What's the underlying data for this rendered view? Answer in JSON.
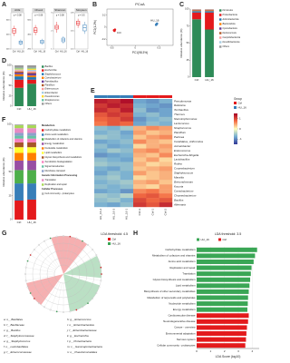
{
  "chart_data": [
    {
      "panel": "A",
      "type": "box",
      "colors": [
        "#e41a1c",
        "#377eb8"
      ],
      "subplots": [
        {
          "title": "ACE",
          "p_label": "p = 0.08",
          "categories": [
            "Ctrl",
            "HU_16"
          ],
          "ylim": [
            200,
            700
          ],
          "yticks": [
            200,
            400,
            600
          ],
          "boxes": [
            [
              380,
              420,
              450,
              480,
              520
            ],
            [
              250,
              270,
              290,
              310,
              330
            ]
          ]
        },
        {
          "title": "Chao1",
          "p_label": "p = 0.08",
          "categories": [
            "Ctrl",
            "HU_16"
          ],
          "ylim": [
            200,
            700
          ],
          "yticks": [
            200,
            400,
            600
          ],
          "boxes": [
            [
              390,
              430,
              460,
              490,
              530
            ],
            [
              260,
              280,
              300,
              320,
              340
            ]
          ]
        },
        {
          "title": "Shannon",
          "p_label": "p = 0.08",
          "categories": [
            "Ctrl",
            "HU_16"
          ],
          "ylim": [
            1,
            3
          ],
          "yticks": [
            1,
            2,
            3
          ],
          "boxes": [
            [
              1.9,
              2.1,
              2.2,
              2.3,
              2.5
            ],
            [
              1.3,
              1.4,
              1.5,
              1.6,
              1.7
            ]
          ]
        },
        {
          "title": "Simpson",
          "p_label": "p = 0.5",
          "categories": [
            "Ctrl",
            "HU_16"
          ],
          "ylim": [
            0.2,
            0.8
          ],
          "yticks": [
            0.2,
            0.5,
            0.8
          ],
          "boxes": [
            [
              0.55,
              0.6,
              0.63,
              0.66,
              0.7
            ],
            [
              0.45,
              0.5,
              0.55,
              0.6,
              0.65
            ]
          ]
        }
      ]
    },
    {
      "panel": "B",
      "type": "scatter",
      "title": "PCoA",
      "x_label": "PC1(98.3%)",
      "y_label": "PC2(1.2%)",
      "xlim": [
        -0.6,
        0.8
      ],
      "ylim": [
        -0.3,
        0.3
      ],
      "xticks": [
        -0.5,
        0,
        0.5
      ],
      "yticks": [
        -0.2,
        0,
        0.2
      ],
      "series": [
        {
          "name": "Ctrl",
          "color": "#e41a1c",
          "x": [
            -0.45,
            -0.43,
            -0.44
          ],
          "y": [
            -0.05,
            -0.04,
            -0.06
          ]
        },
        {
          "name": "HU_16",
          "color": "#377eb8",
          "x": [
            0.45,
            0.46,
            0.44
          ],
          "y": [
            0.05,
            0.06,
            0.04
          ]
        }
      ]
    },
    {
      "panel": "C",
      "type": "stacked_bar",
      "y_label": "Relative abundance (%)",
      "categories": [
        "Ctrl",
        "HU_16"
      ],
      "ylim": [
        0,
        100
      ],
      "yticks": [
        0,
        25,
        50,
        75,
        100
      ],
      "series": [
        {
          "name": "Firmicutes",
          "color": "#2e8b57",
          "values": [
            85,
            70
          ]
        },
        {
          "name": "Proteobacteria",
          "color": "#e41a1c",
          "values": [
            10,
            25
          ]
        },
        {
          "name": "Actinobacteriota",
          "color": "#1f78b4",
          "values": [
            2,
            2
          ]
        },
        {
          "name": "Bacteroidota",
          "color": "#ff7f00",
          "values": [
            1,
            1
          ]
        },
        {
          "name": "Cyanobacteria",
          "color": "#6a3d9a",
          "values": [
            0.5,
            0.5
          ]
        },
        {
          "name": "Deinococcota",
          "color": "#b15928",
          "values": [
            0.5,
            0.5
          ]
        },
        {
          "name": "Campilobacterota",
          "color": "#fb9a99",
          "values": [
            0.3,
            0.3
          ]
        },
        {
          "name": "Desulfobacterota",
          "color": "#a6cee3",
          "values": [
            0.2,
            0.2
          ]
        },
        {
          "name": "Others",
          "color": "#999999",
          "values": [
            0.5,
            0.5
          ]
        }
      ]
    },
    {
      "panel": "D",
      "type": "stacked_bar",
      "y_label": "Relative abundance (%)",
      "categories": [
        "Ctrl",
        "HU_16"
      ],
      "ylim": [
        0,
        100
      ],
      "yticks": [
        0,
        25,
        50,
        75,
        100
      ],
      "series": [
        {
          "name": "Bacillus",
          "color": "#2e8b57",
          "values": [
            45,
            55
          ]
        },
        {
          "name": "Escherichia",
          "color": "#e41a1c",
          "values": [
            20,
            10
          ]
        },
        {
          "name": "Staphylococcus",
          "color": "#1f78b4",
          "values": [
            8,
            6
          ]
        },
        {
          "name": "Carnobacterium",
          "color": "#ff7f00",
          "values": [
            5,
            4
          ]
        },
        {
          "name": "Paenibacillus",
          "color": "#6a3d9a",
          "values": [
            4,
            5
          ]
        },
        {
          "name": "Planifilum",
          "color": "#b15928",
          "values": [
            3,
            2
          ]
        },
        {
          "name": "Enterococcus",
          "color": "#fb9a99",
          "values": [
            3,
            4
          ]
        },
        {
          "name": "Enterobacter",
          "color": "#a6cee3",
          "values": [
            2,
            3
          ]
        },
        {
          "name": "Pseudomonas",
          "color": "#ffd92f",
          "values": [
            2,
            3
          ]
        },
        {
          "name": "Streptococcus",
          "color": "#66c2a5",
          "values": [
            2,
            2
          ]
        },
        {
          "name": "Others",
          "color": "#999999",
          "values": [
            6,
            6
          ]
        }
      ]
    },
    {
      "panel": "E",
      "type": "heatmap",
      "columns": [
        "HU_16-2",
        "HU_16-3",
        "HU_16-1",
        "Ctrl-3",
        "Ctrl-1",
        "Ctrl-2"
      ],
      "rows": [
        "Pseudomonas",
        "Ralstonia",
        "Terribacillus",
        "Thermus",
        "Stenotrophomonas",
        "Lactococcus",
        "Streptococcus",
        "Planifilum",
        "Pantoea",
        "Candidatus_Arthromitus",
        "Acinetobacter",
        "Enterococcus",
        "Escherichia-Shigella",
        "Lactobacillus",
        "Rothia",
        "Corynebacterium",
        "Staphylococcus",
        "Massilia",
        "Brevundimonas",
        "Kocuria",
        "Carnobacterium",
        "Chryseobacterium",
        "Bacillus",
        "Alternaria"
      ],
      "values": [
        [
          1.3,
          1.2,
          1.4,
          -0.8,
          -0.9,
          -0.7
        ],
        [
          1.1,
          1.3,
          1.2,
          -0.7,
          -0.8,
          -0.9
        ],
        [
          1.2,
          1.0,
          1.3,
          -0.6,
          -0.9,
          -0.8
        ],
        [
          0.9,
          1.1,
          1.0,
          -0.7,
          -0.6,
          -0.8
        ],
        [
          0.8,
          0.9,
          1.1,
          -0.9,
          -0.7,
          -0.6
        ],
        [
          0.7,
          0.9,
          0.8,
          -0.8,
          -0.6,
          -0.7
        ],
        [
          -0.6,
          -0.7,
          -0.5,
          0.4,
          0.6,
          0.5
        ],
        [
          -0.7,
          -0.6,
          -0.8,
          0.5,
          0.3,
          0.4
        ],
        [
          -0.5,
          -0.6,
          -0.7,
          0.3,
          0.5,
          0.6
        ],
        [
          -0.8,
          -0.7,
          -0.6,
          0.6,
          0.4,
          0.3
        ],
        [
          -0.6,
          -0.8,
          -0.7,
          0.2,
          0.4,
          0.5
        ],
        [
          -0.7,
          -0.5,
          -0.6,
          0.5,
          0.6,
          0.4
        ],
        [
          -0.9,
          -0.8,
          -0.7,
          0.4,
          0.3,
          0.6
        ],
        [
          -0.6,
          -0.7,
          -0.8,
          0.3,
          0.5,
          0.2
        ],
        [
          -0.5,
          -0.6,
          -0.6,
          0.4,
          0.2,
          0.3
        ],
        [
          -0.7,
          -0.8,
          -0.6,
          0.3,
          0.4,
          0.5
        ],
        [
          -0.8,
          -0.6,
          -0.7,
          0.5,
          0.3,
          0.4
        ],
        [
          -0.6,
          -0.5,
          -0.7,
          0.2,
          0.3,
          0.4
        ],
        [
          -0.7,
          -0.6,
          -0.5,
          0.4,
          0.5,
          0.3
        ],
        [
          -0.6,
          -0.7,
          -0.6,
          0.3,
          0.2,
          0.5
        ],
        [
          -0.8,
          -0.7,
          -0.9,
          0.6,
          0.7,
          0.5
        ],
        [
          -0.5,
          -0.6,
          -0.4,
          0.8,
          0.9,
          0.7
        ],
        [
          -0.6,
          -0.5,
          -0.7,
          1.0,
          0.8,
          0.9
        ],
        [
          -0.7,
          -0.8,
          -0.6,
          1.1,
          0.9,
          1.2
        ]
      ],
      "zlim": [
        -1.5,
        1.5
      ],
      "zticks": [
        -1,
        0,
        1
      ],
      "colormap": [
        "#313695",
        "#74add1",
        "#ffffbf",
        "#f46d43",
        "#a50026"
      ],
      "group_title": "Group",
      "groups": [
        {
          "name": "Ctrl",
          "color": "#e41a1c"
        },
        {
          "name": "HU_16",
          "color": "#377eb8"
        }
      ]
    },
    {
      "panel": "F",
      "type": "stacked_bar",
      "y_label": "Relative abundance (%)",
      "categories": [
        "Ctrl",
        "HU_16"
      ],
      "ylim": [
        0,
        100
      ],
      "yticks": [
        0,
        25,
        50,
        75,
        100
      ],
      "groups": [
        {
          "name": "Metabolism",
          "series": [
            {
              "name": "Carbohydrate metabolism",
              "color": "#e41a1c",
              "values": [
                20,
                21
              ]
            },
            {
              "name": "Amino acid metabolism",
              "color": "#377eb8",
              "values": [
                18,
                17
              ]
            },
            {
              "name": "Metabolism of cofactors and vitamins",
              "color": "#4daf4a",
              "values": [
                14,
                14
              ]
            },
            {
              "name": "Energy metabolism",
              "color": "#984ea3",
              "values": [
                10,
                10
              ]
            },
            {
              "name": "Nucleotide metabolism",
              "color": "#ff7f00",
              "values": [
                8,
                8
              ]
            },
            {
              "name": "Lipid metabolism",
              "color": "#ffff33",
              "values": [
                6,
                6
              ]
            },
            {
              "name": "Glycan biosynthesis and metabolism",
              "color": "#a65628",
              "values": [
                5,
                5
              ]
            },
            {
              "name": "Xenobiotics biodegradation",
              "color": "#f781bf",
              "values": [
                4,
                4
              ]
            },
            {
              "name": "Signal transduction",
              "color": "#66c2a5",
              "values": [
                3,
                3
              ]
            },
            {
              "name": "Membrane transport",
              "color": "#8da0cb",
              "values": [
                3,
                3
              ]
            }
          ]
        },
        {
          "name": "Genetic Information Processing",
          "series": [
            {
              "name": "Translation",
              "color": "#e78ac3",
              "values": [
                5,
                5
              ]
            },
            {
              "name": "Replication and repair",
              "color": "#a6d854",
              "values": [
                3,
                3
              ]
            }
          ]
        },
        {
          "name": "Cellular Processes",
          "series": [
            {
              "name": "Cell community - prokaryotes",
              "color": "#b3b3b3",
              "values": [
                1,
                1
              ]
            }
          ]
        }
      ]
    },
    {
      "panel": "G",
      "type": "cladogram",
      "title": "LDA threshold: 4.5",
      "series": [
        {
          "name": "Ctrl",
          "color": "#e41a1c"
        },
        {
          "name": "HU_16",
          "color": "#3aa655"
        }
      ],
      "legend": [
        "a: o__Bacillales",
        "b: f__Bacillaceae",
        "c: g__Bacillus",
        "d: f__Staphylococcaceae",
        "e: g__Staphylococcus",
        "f: o__Lactobacillales",
        "g: f__Enterococcaceae",
        "h: g__Enterococcus",
        "i: o__Enterobacterales",
        "j: f__Enterobacteriaceae",
        "k: g__Escherichia",
        "l: p__Proteobacteria",
        "m: c__Gammaproteobacteria",
        "n: o__Pseudomonadales"
      ]
    },
    {
      "panel": "H",
      "type": "hbar",
      "title": "LDA threshold: 3.5",
      "x_label": "LDA Score (log10)",
      "series": [
        {
          "name": "HU_16",
          "color": "#3aa655"
        },
        {
          "name": "Ctrl",
          "color": "#e31a1c"
        }
      ],
      "categories": [
        "Carbohydrate metabolism",
        "Metabolism of cofactors and vitamins",
        "Amino acid metabolism",
        "Replication and repair",
        "Translation",
        "Glycan biosynthesis and metabolism",
        "Lipid metabolism",
        "Biosynthesis of other secondary metabolites",
        "Metabolism of terpenoids and polyketides",
        "Nucleotide metabolism",
        "Energy metabolism",
        "Cardiovascular disease",
        "Neurodegenerative disease",
        "Cancer - overview",
        "Environmental adaptation",
        "Nervous system",
        "Cellular community - prokaryotes"
      ],
      "groups": [
        "HU_16",
        "HU_16",
        "HU_16",
        "HU_16",
        "HU_16",
        "HU_16",
        "HU_16",
        "HU_16",
        "HU_16",
        "HU_16",
        "HU_16",
        "Ctrl",
        "Ctrl",
        "Ctrl",
        "Ctrl",
        "Ctrl",
        "Ctrl"
      ],
      "values": [
        4.35,
        4.2,
        4.1,
        3.95,
        3.9,
        3.85,
        3.8,
        3.75,
        3.7,
        3.68,
        3.65,
        3.75,
        3.7,
        3.62,
        3.58,
        3.55,
        3.5
      ],
      "xlim": [
        0,
        4.5
      ],
      "xticks": [
        0,
        1,
        2,
        3,
        4
      ]
    }
  ]
}
